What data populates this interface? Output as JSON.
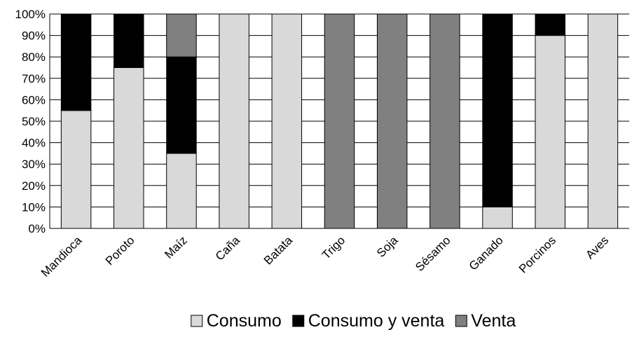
{
  "chart_data": {
    "type": "bar",
    "stacked": true,
    "percent": true,
    "categories": [
      "Mandioca",
      "Poroto",
      "Maíz",
      "Caña",
      "Batata",
      "Trigo",
      "Soja",
      "Sésamo",
      "Ganado",
      "Porcinos",
      "Aves"
    ],
    "series": [
      {
        "name": "Consumo",
        "color": "#d9d9d9",
        "values": [
          55,
          75,
          35,
          100,
          100,
          0,
          0,
          0,
          10,
          90,
          100
        ]
      },
      {
        "name": "Consumo y venta",
        "color": "#000000",
        "values": [
          45,
          25,
          45,
          0,
          0,
          0,
          0,
          0,
          90,
          10,
          0
        ]
      },
      {
        "name": "Venta",
        "color": "#808080",
        "values": [
          0,
          0,
          20,
          0,
          0,
          100,
          100,
          100,
          0,
          0,
          0
        ]
      }
    ],
    "yticks": [
      "0%",
      "10%",
      "20%",
      "30%",
      "40%",
      "50%",
      "60%",
      "70%",
      "80%",
      "90%",
      "100%"
    ],
    "ylim": [
      0,
      100
    ],
    "grid": true,
    "legend_position": "bottom"
  }
}
